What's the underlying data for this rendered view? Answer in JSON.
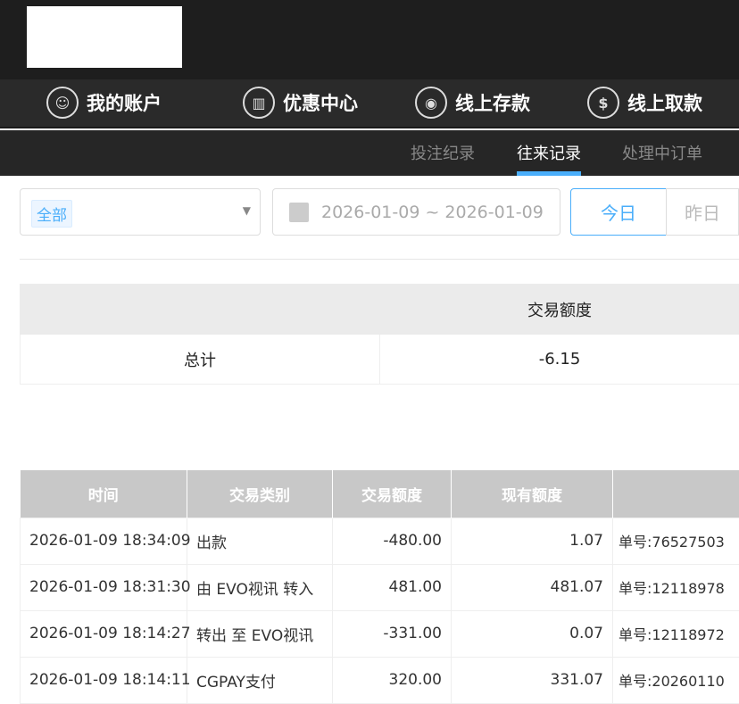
{
  "nav": [
    {
      "label": "我的账户",
      "icon": "user-icon"
    },
    {
      "label": "优惠中心",
      "icon": "gift-icon"
    },
    {
      "label": "线上存款",
      "icon": "deposit-icon"
    },
    {
      "label": "线上取款",
      "icon": "withdraw-icon"
    }
  ],
  "tabs": [
    {
      "label": "投注纪录"
    },
    {
      "label": "往来记录",
      "active": true
    },
    {
      "label": "处理中订单"
    }
  ],
  "filter": {
    "type_tag": "全部",
    "date_range": "2026-01-09 ~ 2026-01-09",
    "today": "今日",
    "yesterday": "昨日"
  },
  "summary": {
    "header": "交易额度",
    "row_label": "总计",
    "value": "-6.15"
  },
  "records": {
    "headers": [
      "时间",
      "交易类别",
      "交易额度",
      "现有额度",
      ""
    ],
    "rows": [
      [
        "2026-01-09 18:34:09",
        "出款",
        "-480.00",
        "1.07",
        "单号:76527503"
      ],
      [
        "2026-01-09 18:31:30",
        "由 EVO视讯 转入",
        "481.00",
        "481.07",
        "单号:12118978"
      ],
      [
        "2026-01-09 18:14:27",
        "转出 至 EVO视讯",
        "-331.00",
        "0.07",
        "单号:12118972"
      ],
      [
        "2026-01-09 18:14:11",
        "CGPAY支付",
        "320.00",
        "331.07",
        "单号:20260110"
      ]
    ]
  },
  "colors": {
    "accent": "#4aaefa",
    "header_bg": "#1e1e1e"
  }
}
